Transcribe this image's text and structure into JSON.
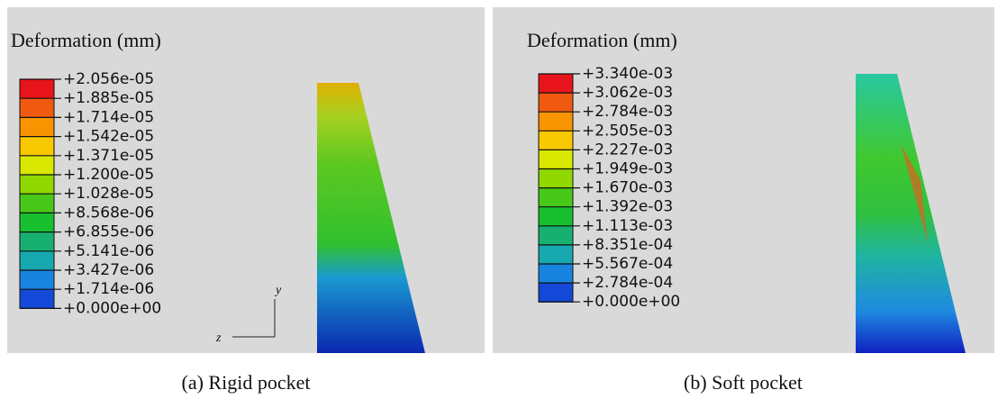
{
  "panels": [
    {
      "title": "Deformation (mm)",
      "legend": [
        "+2.056e-05",
        "+1.885e-05",
        "+1.714e-05",
        "+1.542e-05",
        "+1.371e-05",
        "+1.200e-05",
        "+1.028e-05",
        "+8.568e-06",
        "+6.855e-06",
        "+5.141e-06",
        "+3.427e-06",
        "+1.714e-06",
        "+0.000e+00"
      ],
      "axis": {
        "y": "y",
        "z": "z"
      },
      "caption": "(a) Rigid pocket"
    },
    {
      "title": "Deformation (mm)",
      "legend": [
        "+3.340e-03",
        "+3.062e-03",
        "+2.784e-03",
        "+2.505e-03",
        "+2.227e-03",
        "+1.949e-03",
        "+1.670e-03",
        "+1.392e-03",
        "+1.113e-03",
        "+8.351e-04",
        "+5.567e-04",
        "+2.784e-04",
        "+0.000e+00"
      ],
      "caption": "(b) Soft pocket"
    }
  ]
}
